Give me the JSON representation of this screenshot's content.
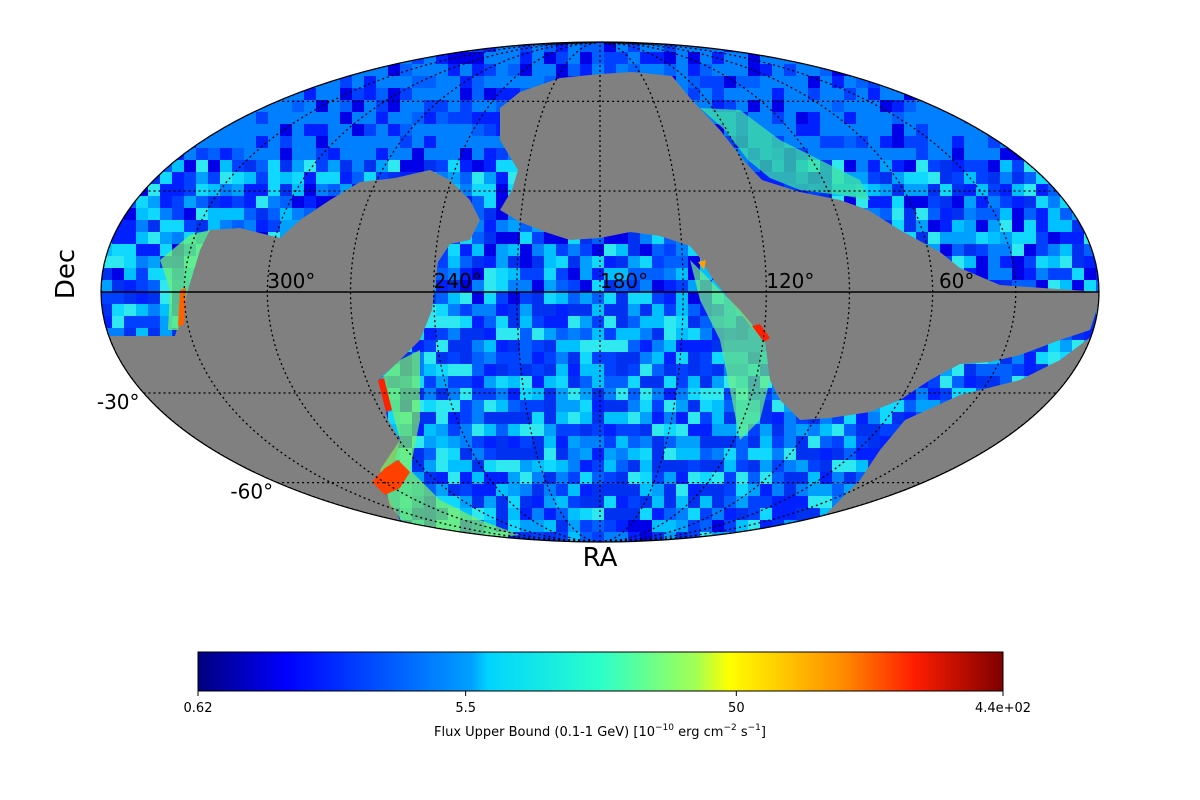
{
  "chart_data": {
    "type": "heatmap",
    "projection": "mollweide",
    "xlabel": "RA",
    "ylabel": "Dec",
    "x_ticks": [
      "300°",
      "240°",
      "180°",
      "120°",
      "60°"
    ],
    "x_tick_values": [
      300,
      240,
      180,
      120,
      60
    ],
    "y_ticks": [
      "-30°",
      "-60°"
    ],
    "y_tick_values": [
      -30,
      -60
    ],
    "grid": true,
    "masked_color": "#808080",
    "colormap": "jet",
    "color_scale": "log",
    "colorbar": {
      "label_main": "Flux Upper Bound (0.1-1 GeV) [10",
      "label_exp1": "−10",
      "label_mid": " erg cm",
      "label_exp2": "−2",
      "label_mid2": " s",
      "label_exp3": "−1",
      "label_end": "]",
      "ticks": [
        "0.62",
        "5.5",
        "50",
        "4.4e+02"
      ],
      "tick_values": [
        0.62,
        5.5,
        50,
        440
      ],
      "min": 0.62,
      "max": 440
    },
    "coverage_description": "Sky map with unobserved regions masked in gray; high flux values near region boundaries"
  }
}
